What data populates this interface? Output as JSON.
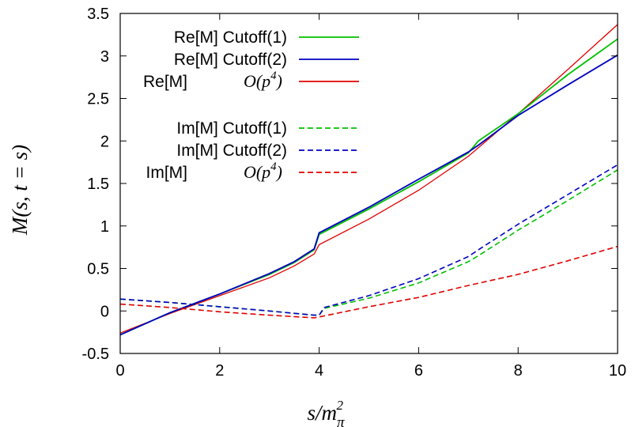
{
  "chart_data": {
    "type": "line",
    "title": "",
    "xlabel": "s/m_π²",
    "ylabel": "M(s,t=s)",
    "xlim": [
      0,
      10
    ],
    "ylim": [
      -0.5,
      3.5
    ],
    "xticks": [
      "0",
      "2",
      "4",
      "6",
      "8",
      "10"
    ],
    "yticks": [
      "-0.5",
      "0",
      "0.5",
      "1",
      "1.5",
      "2",
      "2.5",
      "3",
      "3.5"
    ],
    "legend_position": "top-left",
    "grid": false,
    "series": [
      {
        "name": "Re[M] Cutoff(1)",
        "color": "#00c000",
        "dash": "solid",
        "x": [
          0,
          1,
          2,
          3,
          3.5,
          3.9,
          4.0,
          5,
          6,
          7,
          7.2,
          8,
          9,
          10
        ],
        "y": [
          -0.28,
          -0.02,
          0.2,
          0.43,
          0.57,
          0.72,
          0.9,
          1.2,
          1.52,
          1.86,
          2.0,
          2.32,
          2.78,
          3.2
        ]
      },
      {
        "name": "Re[M] Cutoff(2)",
        "color": "#0000c0",
        "dash": "solid",
        "x": [
          0,
          1,
          2,
          3,
          3.5,
          3.9,
          4.0,
          5,
          6,
          7,
          7.2,
          8,
          9,
          10
        ],
        "y": [
          -0.28,
          -0.02,
          0.2,
          0.44,
          0.58,
          0.73,
          0.92,
          1.22,
          1.55,
          1.87,
          1.95,
          2.3,
          2.66,
          3.01
        ]
      },
      {
        "name": "Re[M] O(p⁴)",
        "color": "#e00000",
        "dash": "solid",
        "x": [
          0,
          1,
          2,
          3,
          3.5,
          3.9,
          4.0,
          5,
          6,
          7,
          8,
          9,
          10
        ],
        "y": [
          -0.26,
          -0.03,
          0.18,
          0.39,
          0.53,
          0.67,
          0.78,
          1.08,
          1.42,
          1.82,
          2.32,
          2.84,
          3.37
        ]
      },
      {
        "name": "Im[M] Cutoff(1)",
        "color": "#00c000",
        "dash": "dashed",
        "x": [
          0,
          1,
          2,
          3,
          3.9,
          4.0,
          4.1,
          5,
          6,
          7,
          7.2,
          8,
          9,
          10
        ],
        "y": [
          0.14,
          0.1,
          0.05,
          0.0,
          -0.05,
          -0.05,
          0.03,
          0.15,
          0.33,
          0.58,
          0.65,
          0.95,
          1.3,
          1.66
        ]
      },
      {
        "name": "Im[M] Cutoff(2)",
        "color": "#0000c0",
        "dash": "dashed",
        "x": [
          0,
          1,
          2,
          3,
          3.9,
          4.0,
          4.1,
          5,
          6,
          7,
          7.2,
          8,
          9,
          10
        ],
        "y": [
          0.14,
          0.1,
          0.05,
          0.0,
          -0.05,
          -0.05,
          0.04,
          0.18,
          0.38,
          0.64,
          0.72,
          1.02,
          1.37,
          1.72
        ]
      },
      {
        "name": "Im[M] O(p⁴)",
        "color": "#e00000",
        "dash": "dashed",
        "x": [
          0,
          1,
          2,
          3,
          3.9,
          4.0,
          5,
          6,
          7,
          8,
          9,
          10
        ],
        "y": [
          0.08,
          0.04,
          -0.01,
          -0.05,
          -0.08,
          -0.07,
          0.05,
          0.16,
          0.3,
          0.43,
          0.59,
          0.76
        ]
      }
    ]
  },
  "legend": [
    {
      "label": "Re[M] Cutoff(1)",
      "math": ""
    },
    {
      "label": "Re[M] Cutoff(2)",
      "math": ""
    },
    {
      "label": "Re[M]",
      "math": "O(p"
    },
    {
      "label": "Im[M] Cutoff(1)",
      "math": ""
    },
    {
      "label": "Im[M] Cutoff(2)",
      "math": ""
    },
    {
      "label": "Im[M]",
      "math": "O(p"
    }
  ]
}
